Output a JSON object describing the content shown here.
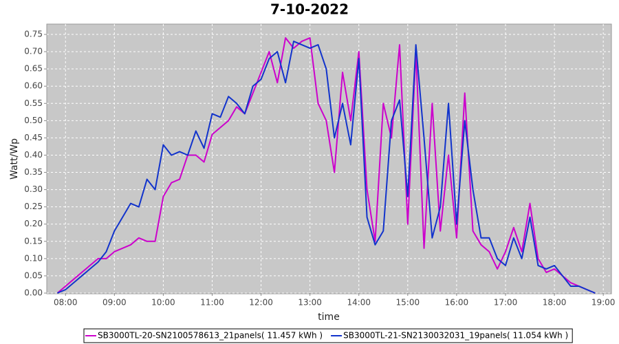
{
  "chart_data": {
    "type": "line",
    "title": "7-10-2022",
    "x_label": "time",
    "y_label": "Watt/Wp",
    "x": [
      "07:50",
      "08:00",
      "08:10",
      "08:20",
      "08:30",
      "08:40",
      "08:50",
      "09:00",
      "09:10",
      "09:20",
      "09:30",
      "09:40",
      "09:50",
      "10:00",
      "10:10",
      "10:20",
      "10:30",
      "10:40",
      "10:50",
      "11:00",
      "11:10",
      "11:20",
      "11:30",
      "11:40",
      "11:50",
      "12:00",
      "12:10",
      "12:20",
      "12:30",
      "12:40",
      "12:50",
      "13:00",
      "13:10",
      "13:20",
      "13:30",
      "13:40",
      "13:50",
      "14:00",
      "14:10",
      "14:20",
      "14:30",
      "14:40",
      "14:50",
      "15:00",
      "15:10",
      "15:20",
      "15:30",
      "15:40",
      "15:50",
      "16:00",
      "16:10",
      "16:20",
      "16:30",
      "16:40",
      "16:50",
      "17:00",
      "17:10",
      "17:20",
      "17:30",
      "17:40",
      "17:50",
      "18:00",
      "18:10",
      "18:20",
      "18:30",
      "18:40",
      "18:50"
    ],
    "series": [
      {
        "name": "SB3000TL-20-SN2100578613_21panels( 11.457 kWh )",
        "color": "#cc00cc",
        "values": [
          0.0,
          0.02,
          0.04,
          0.06,
          0.08,
          0.1,
          0.1,
          0.12,
          0.13,
          0.14,
          0.16,
          0.15,
          0.15,
          0.28,
          0.32,
          0.33,
          0.4,
          0.4,
          0.38,
          0.46,
          0.48,
          0.5,
          0.54,
          0.52,
          0.58,
          0.64,
          0.7,
          0.61,
          0.74,
          0.71,
          0.73,
          0.74,
          0.55,
          0.5,
          0.35,
          0.64,
          0.5,
          0.7,
          0.3,
          0.15,
          0.55,
          0.45,
          0.72,
          0.2,
          0.7,
          0.13,
          0.55,
          0.18,
          0.4,
          0.16,
          0.58,
          0.18,
          0.14,
          0.12,
          0.07,
          0.12,
          0.19,
          0.12,
          0.26,
          0.1,
          0.06,
          0.07,
          0.05,
          0.03,
          0.02,
          0.01,
          0.0
        ]
      },
      {
        "name": "SB3000TL-21-SN2130032031_19panels( 11.054 kWh )",
        "color": "#1133cc",
        "values": [
          0.0,
          0.01,
          0.03,
          0.05,
          0.07,
          0.09,
          0.12,
          0.18,
          0.22,
          0.26,
          0.25,
          0.33,
          0.3,
          0.43,
          0.4,
          0.41,
          0.4,
          0.47,
          0.42,
          0.52,
          0.51,
          0.57,
          0.55,
          0.52,
          0.6,
          0.62,
          0.68,
          0.7,
          0.61,
          0.73,
          0.72,
          0.71,
          0.72,
          0.65,
          0.45,
          0.55,
          0.43,
          0.68,
          0.22,
          0.14,
          0.18,
          0.5,
          0.56,
          0.28,
          0.72,
          0.45,
          0.16,
          0.25,
          0.55,
          0.2,
          0.5,
          0.3,
          0.16,
          0.16,
          0.1,
          0.08,
          0.16,
          0.1,
          0.22,
          0.08,
          0.07,
          0.08,
          0.05,
          0.02,
          0.02,
          0.01,
          0.0
        ]
      }
    ],
    "xlim": [
      "07:37",
      "19:10"
    ],
    "xticks": [
      "08:00",
      "09:00",
      "10:00",
      "11:00",
      "12:00",
      "13:00",
      "14:00",
      "15:00",
      "16:00",
      "17:00",
      "18:00",
      "19:00"
    ],
    "ylim": [
      0,
      0.78
    ],
    "yticks": [
      {
        "value": 0,
        "label": "0.00"
      },
      {
        "value": 0.05,
        "label": "0.05"
      },
      {
        "value": 0.1,
        "label": "0.10"
      },
      {
        "value": 0.15,
        "label": "0.15"
      },
      {
        "value": 0.2,
        "label": "0.20"
      },
      {
        "value": 0.25,
        "label": "0.25"
      },
      {
        "value": 0.3,
        "label": "0.30"
      },
      {
        "value": 0.35,
        "label": "0.35"
      },
      {
        "value": 0.4,
        "label": "0.40"
      },
      {
        "value": 0.45,
        "label": "0.45"
      },
      {
        "value": 0.5,
        "label": "0.50"
      },
      {
        "value": 0.55,
        "label": "0.55"
      },
      {
        "value": 0.6,
        "label": "0.60"
      },
      {
        "value": 0.65,
        "label": "0.65"
      },
      {
        "value": 0.7,
        "label": "0.70"
      },
      {
        "value": 0.75,
        "label": "0.75"
      }
    ],
    "grid": true,
    "legend": "bottom"
  }
}
